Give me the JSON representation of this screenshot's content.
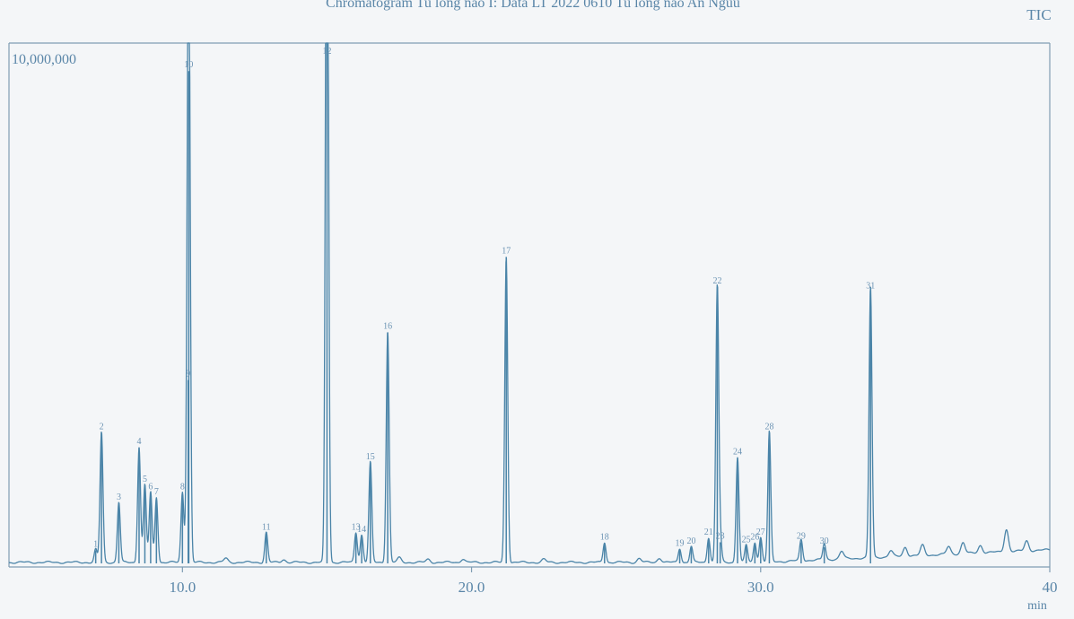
{
  "chart_data": {
    "type": "line",
    "title": "Chromatogram Tu long nao I: Data LT 2022 0610 Tu long nao An Nguu",
    "detector": "TIC",
    "xlabel": "min",
    "ylabel": "",
    "xlim": [
      4.0,
      40.0
    ],
    "ylim": [
      0,
      10000000
    ],
    "x_ticks": [
      10.0,
      20.0,
      30.0,
      40.0
    ],
    "x_tick_labels": [
      "10.0",
      "20.0",
      "30.0",
      "40"
    ],
    "y_scale_label": "10,000,000",
    "grid": false,
    "colors": {
      "trace": "#4a84a8",
      "frame": "#7f9db3",
      "text": "#5a86a8",
      "background": "#f4f6f8"
    },
    "peaks": [
      {
        "x": 7.0,
        "y": 260000,
        "label": "1"
      },
      {
        "x": 7.2,
        "y": 2600000,
        "label": "2"
      },
      {
        "x": 7.8,
        "y": 1200000,
        "label": "3"
      },
      {
        "x": 8.5,
        "y": 2300000,
        "label": "4"
      },
      {
        "x": 8.7,
        "y": 1550000,
        "label": "5"
      },
      {
        "x": 8.9,
        "y": 1400000,
        "label": "6"
      },
      {
        "x": 9.1,
        "y": 1300000,
        "label": "7"
      },
      {
        "x": 10.0,
        "y": 1400000,
        "label": "8"
      },
      {
        "x": 10.2,
        "y": 3650000,
        "label": "9"
      },
      {
        "x": 10.22,
        "y": 9800000,
        "label": "10"
      },
      {
        "x": 12.9,
        "y": 600000,
        "label": "11"
      },
      {
        "x": 15.0,
        "y": 17000000,
        "label": "12"
      },
      {
        "x": 16.0,
        "y": 600000,
        "label": "13"
      },
      {
        "x": 16.2,
        "y": 550000,
        "label": "14"
      },
      {
        "x": 16.5,
        "y": 2000000,
        "label": "15"
      },
      {
        "x": 17.1,
        "y": 4600000,
        "label": "16"
      },
      {
        "x": 21.2,
        "y": 6100000,
        "label": "17"
      },
      {
        "x": 24.6,
        "y": 400000,
        "label": "18"
      },
      {
        "x": 27.2,
        "y": 280000,
        "label": "19"
      },
      {
        "x": 27.6,
        "y": 320000,
        "label": "20"
      },
      {
        "x": 28.2,
        "y": 500000,
        "label": "21"
      },
      {
        "x": 28.5,
        "y": 5500000,
        "label": "22"
      },
      {
        "x": 28.6,
        "y": 420000,
        "label": "23"
      },
      {
        "x": 29.2,
        "y": 2100000,
        "label": "24"
      },
      {
        "x": 29.5,
        "y": 350000,
        "label": "25"
      },
      {
        "x": 29.8,
        "y": 400000,
        "label": "26"
      },
      {
        "x": 30.0,
        "y": 500000,
        "label": "27"
      },
      {
        "x": 30.3,
        "y": 2600000,
        "label": "28"
      },
      {
        "x": 31.4,
        "y": 420000,
        "label": "29"
      },
      {
        "x": 32.2,
        "y": 320000,
        "label": "30"
      },
      {
        "x": 33.8,
        "y": 5400000,
        "label": "31"
      }
    ],
    "minor_peaks": [
      {
        "x": 11.5,
        "y": 80000
      },
      {
        "x": 13.5,
        "y": 60000
      },
      {
        "x": 17.5,
        "y": 90000
      },
      {
        "x": 18.5,
        "y": 60000
      },
      {
        "x": 19.7,
        "y": 70000
      },
      {
        "x": 22.5,
        "y": 60000
      },
      {
        "x": 25.8,
        "y": 80000
      },
      {
        "x": 26.5,
        "y": 90000
      },
      {
        "x": 32.8,
        "y": 150000
      },
      {
        "x": 34.5,
        "y": 120000
      },
      {
        "x": 35.0,
        "y": 180000
      },
      {
        "x": 35.6,
        "y": 200000
      },
      {
        "x": 36.5,
        "y": 150000
      },
      {
        "x": 37.0,
        "y": 220000
      },
      {
        "x": 37.6,
        "y": 150000
      },
      {
        "x": 38.5,
        "y": 450000
      },
      {
        "x": 39.2,
        "y": 200000
      }
    ]
  }
}
